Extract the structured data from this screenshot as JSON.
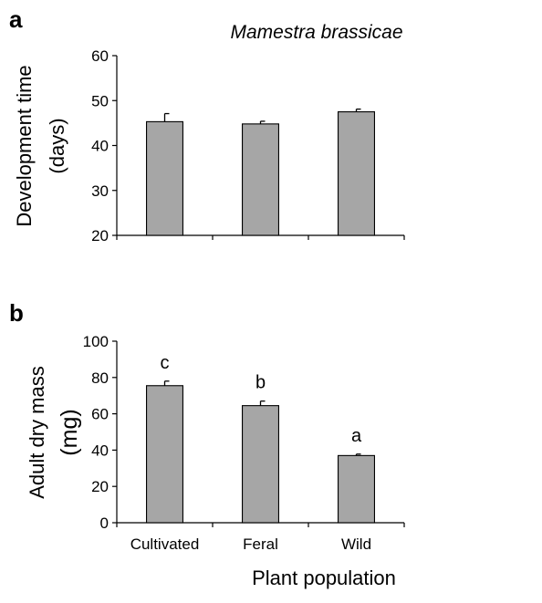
{
  "colors": {
    "bar_fill": "#a6a6a6",
    "axis": "#000000"
  },
  "chart_data": [
    {
      "panel": "a",
      "type": "bar",
      "title": "Mamestra brassicae",
      "ylabel_line1": "Development time",
      "ylabel_line2": "(days)",
      "xlabel": "",
      "categories": [
        "",
        "",
        ""
      ],
      "values": [
        45.3,
        44.8,
        47.5
      ],
      "errors": [
        1.8,
        0.6,
        0.6
      ],
      "significance": [],
      "ylim": [
        20,
        60
      ],
      "yticks": [
        20,
        30,
        40,
        50,
        60
      ],
      "grid": false,
      "legend": "none"
    },
    {
      "panel": "b",
      "type": "bar",
      "title": "",
      "ylabel_line1": "Adult dry mass",
      "ylabel_line2": "(mg)",
      "xlabel": "Plant population",
      "categories": [
        "Cultivated",
        "Feral",
        "Wild"
      ],
      "values": [
        75.5,
        64.5,
        37.0
      ],
      "errors": [
        2.5,
        2.5,
        0.8
      ],
      "significance": [
        "c",
        "b",
        "a"
      ],
      "ylim": [
        0,
        100
      ],
      "yticks": [
        0,
        20,
        40,
        60,
        80,
        100
      ],
      "grid": false,
      "legend": "none"
    }
  ]
}
